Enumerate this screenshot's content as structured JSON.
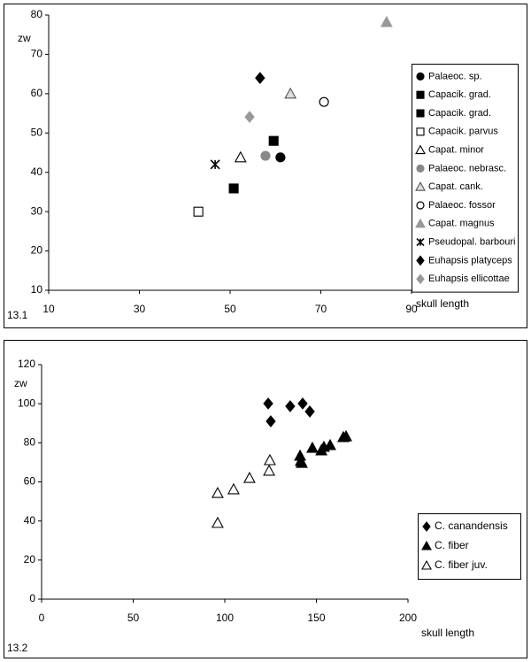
{
  "chart_data": [
    {
      "type": "scatter",
      "panel": "13.1",
      "xlabel": "skull length",
      "ylabel": "zw",
      "xlim": [
        10,
        90
      ],
      "xticks": [
        10,
        30,
        50,
        70,
        90
      ],
      "ylim": [
        10,
        80
      ],
      "yticks": [
        10,
        20,
        30,
        40,
        50,
        60,
        70,
        80
      ],
      "legend": "right",
      "series": [
        {
          "name": "Palaeoc. sp.",
          "marker": "circle",
          "color": "#000",
          "stroke": "#000",
          "x": [
            61.1
          ],
          "y": [
            43.8
          ]
        },
        {
          "name": "Capacik. grad.",
          "marker": "square",
          "color": "#000",
          "stroke": "#000",
          "x": [
            59.6
          ],
          "y": [
            48
          ]
        },
        {
          "name": "Capacik. grad.",
          "marker": "square",
          "color": "#000",
          "stroke": "#000",
          "x": [
            50.8
          ],
          "y": [
            35.9
          ]
        },
        {
          "name": "Capacik. parvus",
          "marker": "square",
          "color": "#fff",
          "stroke": "#000",
          "x": [
            43
          ],
          "y": [
            30
          ]
        },
        {
          "name": "Capat. minor",
          "marker": "triangle",
          "color": "#fff",
          "stroke": "#000",
          "x": [
            52.3
          ],
          "y": [
            43.8
          ]
        },
        {
          "name": "Palaeoc. nebrasc.",
          "marker": "circle",
          "color": "#888",
          "stroke": "#888",
          "x": [
            57.8
          ],
          "y": [
            44.2
          ]
        },
        {
          "name": "Capat. cank.",
          "marker": "triangle",
          "color": "#ddd",
          "stroke": "#555",
          "x": [
            63.3
          ],
          "y": [
            60
          ]
        },
        {
          "name": "Palaeoc. fossor",
          "marker": "circle",
          "color": "#fff",
          "stroke": "#000",
          "x": [
            70.7
          ],
          "y": [
            57.9
          ]
        },
        {
          "name": "Capat. magnus",
          "marker": "triangle",
          "color": "#999",
          "stroke": "#999",
          "x": [
            84.5
          ],
          "y": [
            78.2
          ]
        },
        {
          "name": "Pseudopal. barbouri",
          "marker": "asterisk",
          "color": "#000",
          "stroke": "#000",
          "x": [
            46.7
          ],
          "y": [
            42
          ]
        },
        {
          "name": "Euhapsis platyceps",
          "marker": "diamond",
          "color": "#000",
          "stroke": "#000",
          "x": [
            56.6
          ],
          "y": [
            64
          ]
        },
        {
          "name": "Euhapsis ellicottae",
          "marker": "diamond",
          "color": "#999",
          "stroke": "#999",
          "x": [
            54.3
          ],
          "y": [
            54.1
          ]
        }
      ]
    },
    {
      "type": "scatter",
      "panel": "13.2",
      "xlabel": "skull length",
      "ylabel": "zw",
      "xlim": [
        0,
        200
      ],
      "xticks": [
        0,
        50,
        100,
        150,
        200
      ],
      "ylim": [
        0,
        120
      ],
      "yticks": [
        0,
        20,
        40,
        60,
        80,
        100,
        120
      ],
      "legend": "lower right",
      "series": [
        {
          "name": "C. canandensis",
          "marker": "diamond",
          "color": "#000",
          "stroke": "#000",
          "x": [
            123.7,
            125.1,
            135.7,
            142.5,
            146.4
          ],
          "y": [
            100.1,
            91,
            98.7,
            100.1,
            96
          ]
        },
        {
          "name": "C. fiber",
          "marker": "triangle",
          "color": "#000",
          "stroke": "#000",
          "x": [
            141.1,
            141.5,
            142,
            147.8,
            152.7,
            154.1,
            157.5,
            164.7,
            166.2
          ],
          "y": [
            73.4,
            70.7,
            69.7,
            77.4,
            76.1,
            77.9,
            78.8,
            82.9,
            83.3
          ]
        },
        {
          "name": "C. fiber juv.",
          "marker": "triangle",
          "color": "#fff",
          "stroke": "#000",
          "x": [
            96.1,
            104.8,
            113.5,
            124.2,
            124.6,
            96.1
          ],
          "y": [
            54.3,
            56.2,
            62,
            65.7,
            71.1,
            39
          ]
        }
      ]
    }
  ]
}
